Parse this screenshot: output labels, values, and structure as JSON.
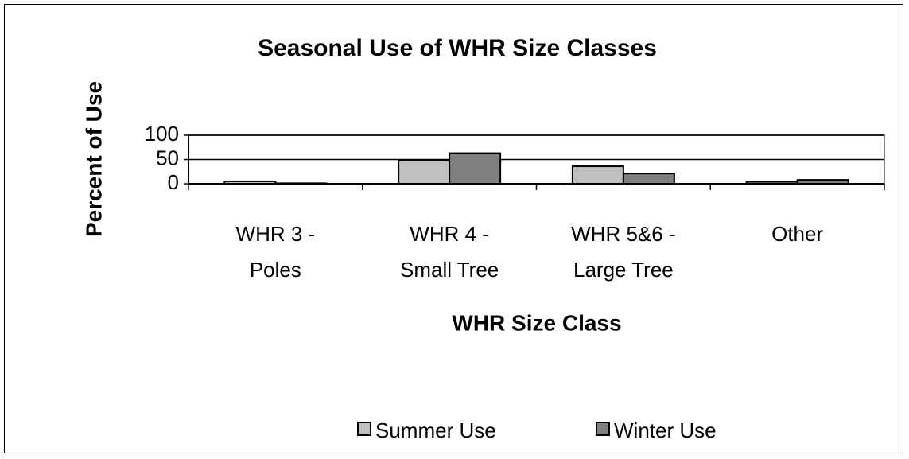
{
  "chart_data": {
    "type": "bar",
    "title": "Seasonal Use of WHR Size Classes",
    "x_label": "WHR Size Class",
    "y_label": "Percent of Use",
    "categories": [
      "WHR 3 -\nPoles",
      "WHR 4 -\nSmall Tree",
      "WHR 5&6 -\nLarge Tree",
      "Other"
    ],
    "series": [
      {
        "name": "Summer Use",
        "color": "#c0c0c0",
        "values": [
          5,
          48,
          36,
          4
        ]
      },
      {
        "name": "Winter Use",
        "color": "#808080",
        "values": [
          1,
          63,
          21,
          8
        ]
      }
    ],
    "ylim": [
      0,
      100
    ],
    "yticks": [
      0,
      50,
      100
    ],
    "grid": true,
    "legend": "bottom"
  }
}
